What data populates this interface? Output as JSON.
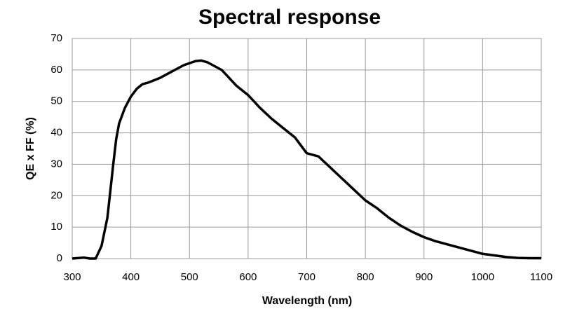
{
  "chart_data": {
    "type": "line",
    "title": "Spectral response",
    "x_label": "Wavelength (nm)",
    "y_label": "QE x FF (%)",
    "series": [
      {
        "name": "QE x FF",
        "color": "#000000",
        "x": [
          300,
          320,
          330,
          340,
          350,
          360,
          370,
          375,
          380,
          390,
          400,
          410,
          420,
          430,
          450,
          470,
          490,
          510,
          520,
          530,
          540,
          555,
          570,
          580,
          600,
          620,
          640,
          660,
          680,
          700,
          710,
          720,
          740,
          760,
          780,
          800,
          820,
          840,
          860,
          880,
          900,
          920,
          940,
          960,
          980,
          1000,
          1020,
          1040,
          1060,
          1080,
          1100
        ],
        "values": [
          0,
          0.3,
          0,
          0,
          4,
          13,
          30,
          38,
          43,
          48,
          51.5,
          54,
          55.5,
          56,
          57.5,
          59.5,
          61.5,
          62.8,
          63,
          62.5,
          61.5,
          60,
          57,
          55,
          52,
          48,
          44.5,
          41.5,
          38.5,
          33.5,
          33,
          32.5,
          29,
          25.5,
          22,
          18.5,
          16,
          13,
          10.5,
          8.5,
          6.8,
          5.5,
          4.5,
          3.5,
          2.5,
          1.5,
          1,
          0.5,
          0.2,
          0.1,
          0.1
        ]
      }
    ],
    "xlim": [
      300,
      1100
    ],
    "xticks": [
      300,
      400,
      500,
      600,
      700,
      800,
      900,
      1000,
      1100
    ],
    "ylim": [
      0,
      70
    ],
    "yticks": [
      0,
      10,
      20,
      30,
      40,
      50,
      60,
      70
    ],
    "grid": true
  }
}
